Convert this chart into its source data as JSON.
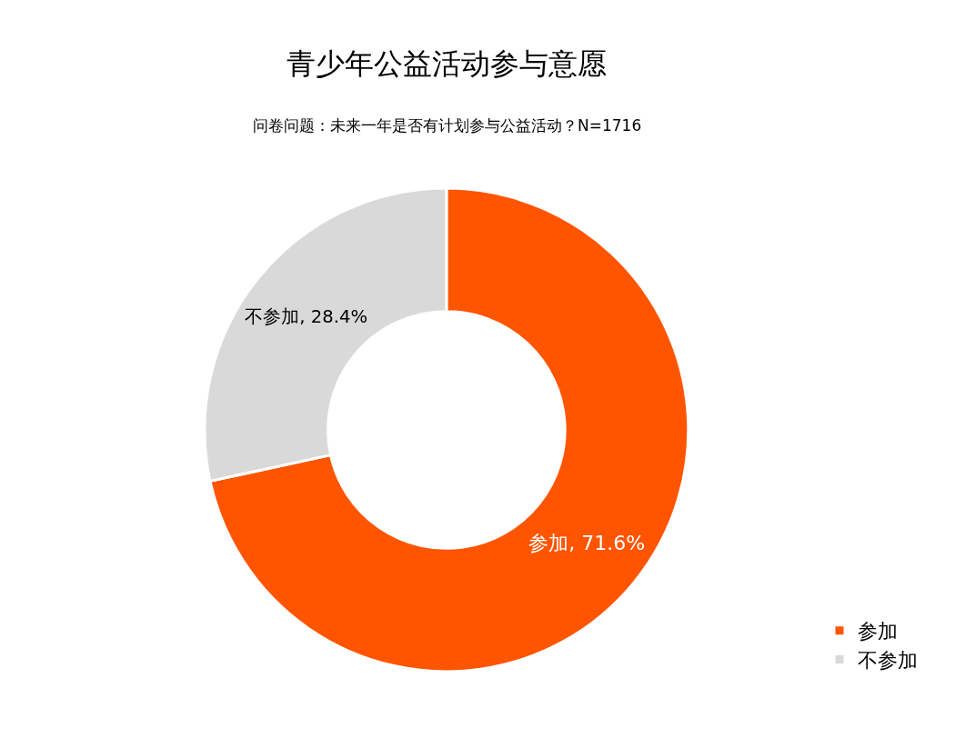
{
  "chart_data": {
    "type": "donut",
    "title": "青少年公益活动参与意愿",
    "subtitle": "问卷问题：未来一年是否有计划参与公益活动？N=1716",
    "categories": [
      "参加",
      "不参加"
    ],
    "values": [
      71.6,
      28.4
    ],
    "colors": [
      "#ff5500",
      "#d9d9d9"
    ],
    "value_labels": [
      "参加, 71.6%",
      "不参加, 28.4%"
    ],
    "legend": "bottom right"
  }
}
